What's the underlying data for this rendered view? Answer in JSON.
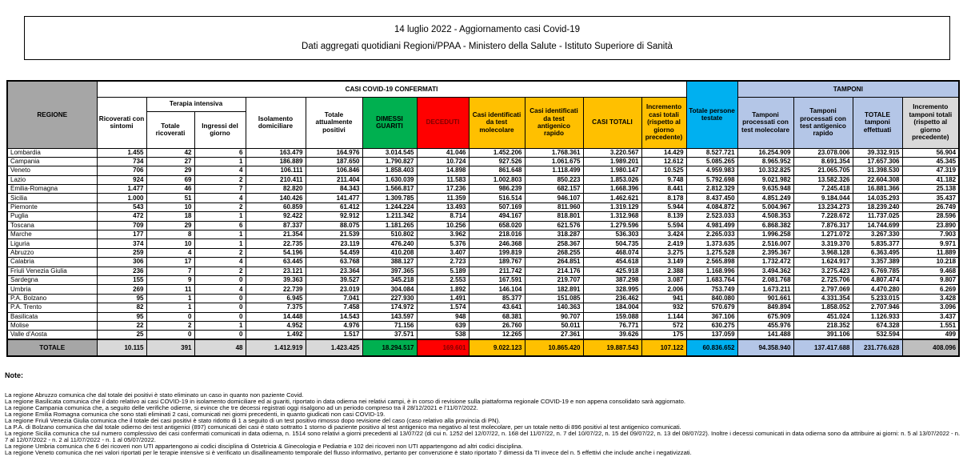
{
  "title_box": {
    "line1": "14 luglio 2022 - Aggiornamento casi Covid-19",
    "line2": "Dati aggregati quotidiani Regioni/PPAA - Ministero della Salute - Istituto Superiore di Sanità"
  },
  "colors": {
    "header_gray": "#A6A6A6",
    "green": "#00B050",
    "red": "#FF0000",
    "dark_red_text": "#7F0000",
    "gold": "#FFC000",
    "cyan": "#00B0F0",
    "light_blue": "#B4C6E7",
    "light_gray": "#D9D9D9"
  },
  "table": {
    "header": {
      "regione": "REGIONE",
      "casi_group": "CASI COVID-19 CONFERMATI",
      "terapia_group": "Terapia intensiva",
      "tamponi_group": "TAMPONI",
      "cols": {
        "ricoverati": "Ricoverati con sintomi",
        "ti_totale": "Totale ricoverati",
        "ti_ingressi": "Ingressi del giorno",
        "isolamento": "Isolamento domiciliare",
        "positivi": "Totale attualmente positivi",
        "dimessi": "DIMESSI GUARITI",
        "deceduti": "DECEDUTI",
        "casi_molecolare": "Casi identificati da test molecolare",
        "casi_antigenico": "Casi identificati da test antigenico rapido",
        "casi_totali": "CASI TOTALI",
        "incremento_casi": "Incremento casi totali (rispetto al giorno precedente)",
        "persone_testate": "Totale persone testate",
        "tamponi_molecolare": "Tamponi processati con test molecolare",
        "tamponi_antigenico": "Tamponi processati con test antigenico rapido",
        "tamponi_totale": "TOTALE tamponi effettuati",
        "incremento_tamponi": "Incremento tamponi totali (rispetto al giorno precedente)"
      }
    },
    "rows": [
      [
        "Lombardia",
        "1.455",
        "42",
        "6",
        "163.479",
        "164.976",
        "3.014.545",
        "41.046",
        "1.452.206",
        "1.768.361",
        "3.220.567",
        "14.429",
        "8.527.721",
        "16.254.909",
        "23.078.006",
        "39.332.915",
        "56.904"
      ],
      [
        "Campania",
        "734",
        "27",
        "1",
        "186.889",
        "187.650",
        "1.790.827",
        "10.724",
        "927.526",
        "1.061.675",
        "1.989.201",
        "12.612",
        "5.085.265",
        "8.965.952",
        "8.691.354",
        "17.657.306",
        "45.345"
      ],
      [
        "Veneto",
        "706",
        "29",
        "4",
        "106.111",
        "106.846",
        "1.858.403",
        "14.898",
        "861.648",
        "1.118.499",
        "1.980.147",
        "10.525",
        "4.959.983",
        "10.332.825",
        "21.065.705",
        "31.398.530",
        "47.319"
      ],
      [
        "Lazio",
        "924",
        "69",
        "2",
        "210.411",
        "211.404",
        "1.630.039",
        "11.583",
        "1.002.803",
        "850.223",
        "1.853.026",
        "9.748",
        "5.792.698",
        "9.021.982",
        "13.582.326",
        "22.604.308",
        "41.182"
      ],
      [
        "Emilia-Romagna",
        "1.477",
        "46",
        "7",
        "82.820",
        "84.343",
        "1.566.817",
        "17.236",
        "986.239",
        "682.157",
        "1.668.396",
        "8.441",
        "2.812.329",
        "9.635.948",
        "7.245.418",
        "16.881.366",
        "25.138"
      ],
      [
        "Sicilia",
        "1.000",
        "51",
        "4",
        "140.426",
        "141.477",
        "1.309.785",
        "11.359",
        "516.514",
        "946.107",
        "1.462.621",
        "8.178",
        "8.437.450",
        "4.851.249",
        "9.184.044",
        "14.035.293",
        "35.437"
      ],
      [
        "Piemonte",
        "543",
        "10",
        "2",
        "60.859",
        "61.412",
        "1.244.224",
        "13.493",
        "507.169",
        "811.960",
        "1.319.129",
        "5.944",
        "4.084.872",
        "5.004.967",
        "13.234.273",
        "18.239.240",
        "26.749"
      ],
      [
        "Puglia",
        "472",
        "18",
        "1",
        "92.422",
        "92.912",
        "1.211.342",
        "8.714",
        "494.167",
        "818.801",
        "1.312.968",
        "8.139",
        "2.523.033",
        "4.508.353",
        "7.228.672",
        "11.737.025",
        "28.596"
      ],
      [
        "Toscana",
        "709",
        "29",
        "6",
        "87.337",
        "88.075",
        "1.181.265",
        "10.256",
        "658.020",
        "621.576",
        "1.279.596",
        "5.594",
        "4.981.499",
        "6.868.382",
        "7.876.317",
        "14.744.699",
        "23.890"
      ],
      [
        "Marche",
        "177",
        "8",
        "1",
        "21.354",
        "21.539",
        "510.802",
        "3.962",
        "218.016",
        "318.287",
        "536.303",
        "3.424",
        "2.265.033",
        "1.996.258",
        "1.271.072",
        "3.267.330",
        "7.903"
      ],
      [
        "Liguria",
        "374",
        "10",
        "1",
        "22.735",
        "23.119",
        "476.240",
        "5.376",
        "246.368",
        "258.367",
        "504.735",
        "2.419",
        "1.373.635",
        "2.516.007",
        "3.319.370",
        "5.835.377",
        "9.971"
      ],
      [
        "Abruzzo",
        "259",
        "4",
        "2",
        "54.196",
        "54.459",
        "410.208",
        "3.407",
        "199.819",
        "268.255",
        "468.074",
        "3.275",
        "1.275.528",
        "2.395.367",
        "3.968.128",
        "6.363.495",
        "11.889"
      ],
      [
        "Calabria",
        "306",
        "17",
        "4",
        "63.445",
        "63.768",
        "388.127",
        "2.723",
        "189.767",
        "264.851",
        "454.618",
        "3.149",
        "2.565.898",
        "1.732.472",
        "1.624.917",
        "3.357.389",
        "10.218"
      ],
      [
        "Friuli Venezia Giulia",
        "236",
        "7",
        "2",
        "23.121",
        "23.364",
        "397.365",
        "5.189",
        "211.742",
        "214.176",
        "425.918",
        "2.388",
        "1.168.996",
        "3.494.362",
        "3.275.423",
        "6.769.785",
        "9.468"
      ],
      [
        "Sardegna",
        "155",
        "9",
        "0",
        "39.363",
        "39.527",
        "345.218",
        "2.553",
        "167.591",
        "219.707",
        "387.298",
        "3.087",
        "1.683.764",
        "2.081.768",
        "2.725.706",
        "4.807.474",
        "9.807"
      ],
      [
        "Umbria",
        "269",
        "11",
        "4",
        "22.739",
        "23.019",
        "304.084",
        "1.892",
        "146.104",
        "182.891",
        "328.995",
        "2.006",
        "753.749",
        "1.673.211",
        "2.797.069",
        "4.470.280",
        "6.269"
      ],
      [
        "P.A. Bolzano",
        "95",
        "1",
        "0",
        "6.945",
        "7.041",
        "227.930",
        "1.491",
        "85.377",
        "151.085",
        "236.462",
        "941",
        "840.080",
        "901.661",
        "4.331.354",
        "5.233.015",
        "3.428"
      ],
      [
        "P.A. Trento",
        "82",
        "1",
        "0",
        "7.375",
        "7.458",
        "174.972",
        "1.574",
        "43.641",
        "140.363",
        "184.004",
        "932",
        "570.679",
        "849.894",
        "1.858.052",
        "2.707.946",
        "3.096"
      ],
      [
        "Basilicata",
        "95",
        "0",
        "0",
        "14.448",
        "14.543",
        "143.597",
        "948",
        "68.381",
        "90.707",
        "159.088",
        "1.144",
        "367.106",
        "675.909",
        "451.024",
        "1.126.933",
        "3.437"
      ],
      [
        "Molise",
        "22",
        "2",
        "1",
        "4.952",
        "4.976",
        "71.156",
        "639",
        "26.760",
        "50.011",
        "76.771",
        "572",
        "630.275",
        "455.976",
        "218.352",
        "674.328",
        "1.551"
      ],
      [
        "Valle d'Aosta",
        "25",
        "0",
        "0",
        "1.492",
        "1.517",
        "37.571",
        "538",
        "12.265",
        "27.361",
        "39.626",
        "175",
        "137.059",
        "141.488",
        "391.106",
        "532.594",
        "499"
      ]
    ],
    "totals": {
      "label": "TOTALE",
      "values": [
        "10.115",
        "391",
        "48",
        "1.412.919",
        "1.423.425",
        "18.294.517",
        "169.601",
        "9.022.123",
        "10.865.420",
        "19.887.543",
        "107.122",
        "60.836.652",
        "94.358.940",
        "137.417.688",
        "231.776.628",
        "408.096"
      ]
    }
  },
  "notes": {
    "heading": "Note:",
    "items": [
      "La regione Abruzzo comunica che dal totale dei positivi è stato eliminato un caso in quanto non paziente Covid.",
      "La regione Basilicata comunica che il dato relativo ai casi COVID-19 in isolamento domiciliare ed ai guariti, riportato in data odierna nei relativi campi, è in corso di revisione sulla piattaforma regionale COVID-19 e non appena consolidato sarà aggiornato.",
      "La regione Campania comunica che, a seguito delle verifiche odierne, si evince che tre decessi registrati oggi risalgono ad un periodo compreso tra il 28/12/2021 e l'11/07/2022.",
      "La regione Emilia Romagna comunica che sono stati eliminati 2 casi, comunicati nei giorni precedenti, in quanto giudicati non casi COVID-19.",
      "La regione Friuli Venezia Giulia comunica che il totale dei casi positivi è stato ridotto di 1 a seguito di un test positivo rimosso dopo revisione del caso (caso relativo alla provincia di PN).",
      "La P.A. di Bolzano comunica che dal totale odierno dei test antigenici (897) comunicati dei casi è stato sottratto 1 storno di paziente positivo al test antigenico ma negativo al test molecolare, per un totale netto di 896 positivi al test antigenico comunicati.",
      "La regione Sicilia comunica che sul numero complessivo dei casi confermati comunicati in data odierna, n. 1514 sono relativi a giorni precedenti al 13/07/22 (di cui n. 1252 del 12/07/22, n. 168 del 11/07/22, n. 7 del 10/07/22, n. 15 del 09/07/22, n. 13 del 08/07/22). Inoltre i decessi comunicati in data odierna sono da attribuire ai giorni: n. 5 al 13/07/2022 - n. 7 al 12/07/2022 - n. 2 al 11/07/2022 - n. 1 al 05/07/2022.",
      "La regione Umbria comunica che 6 dei ricoveri non UTI appartengono ai codici disciplina di Ostetricia & Ginecologia e Pediatria e 102 dei ricoveri non UTI appartengono ad altri codici disciplina.",
      "La regione Veneto comunica che nei valori riportati per le terapie intensive si è verificato un disallineamento temporale del flusso informativo, pertanto per convenzione è stato riportato 7 dimessi da TI invece del n. 5 effettivi che include anche i negativizzati."
    ]
  }
}
